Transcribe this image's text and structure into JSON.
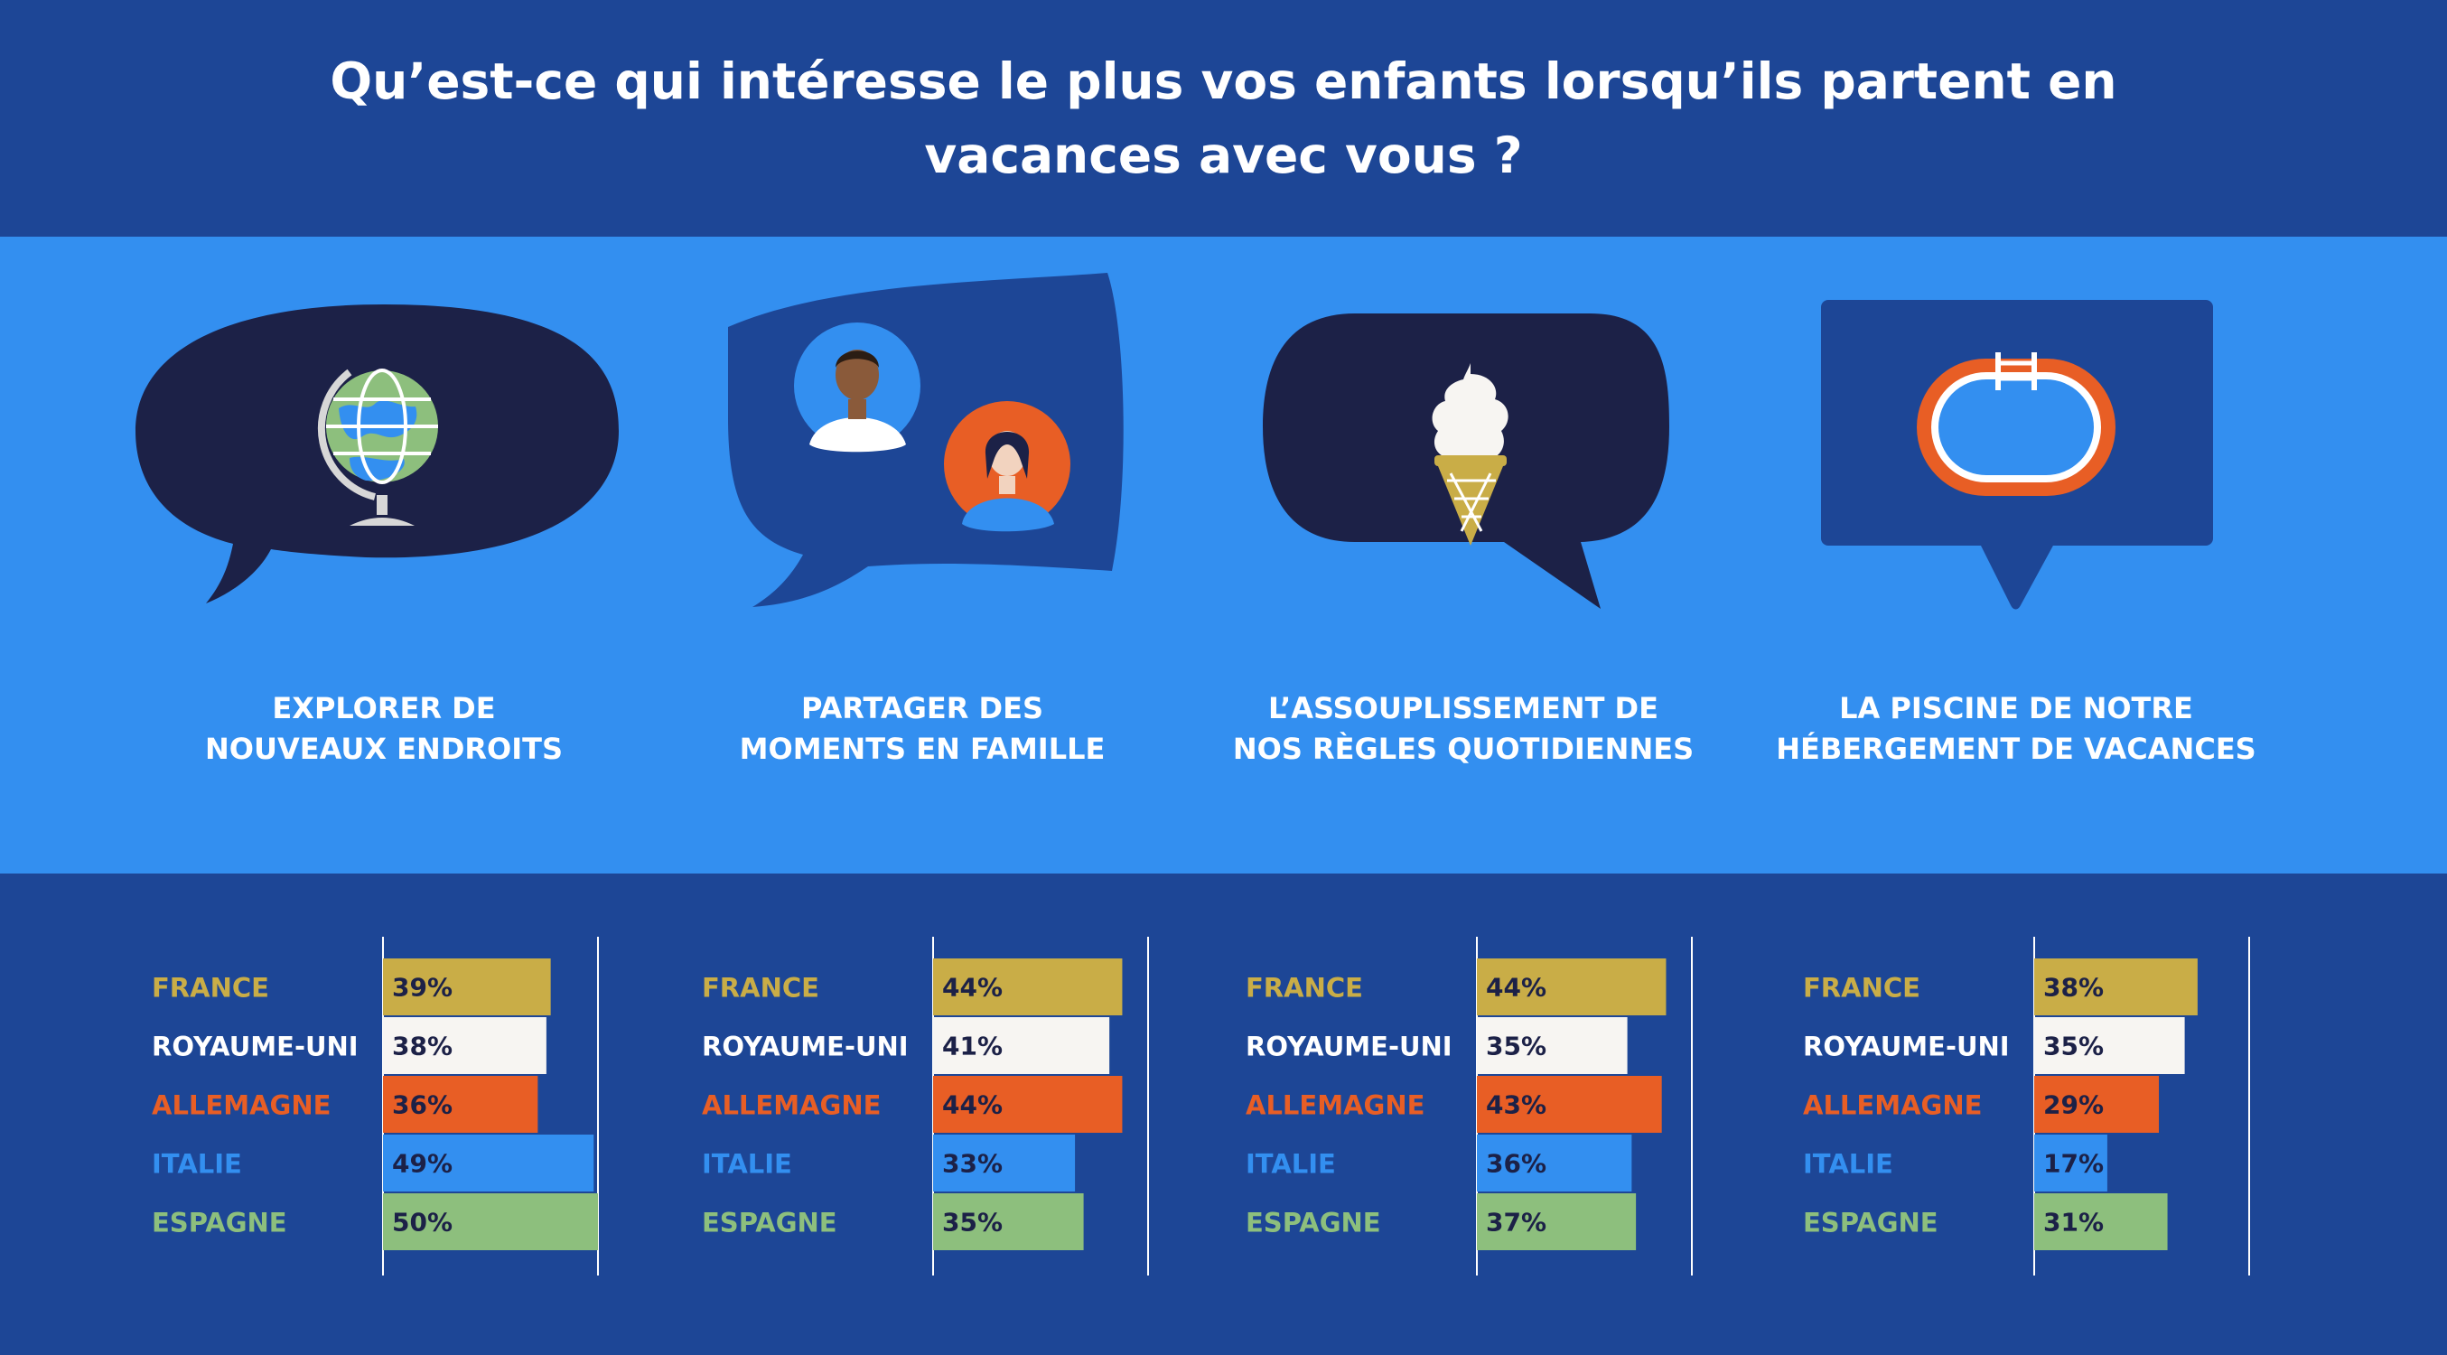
{
  "title": "Qu’est-ce qui intéresse le plus vos enfants lorsqu’ils partent en vacances avec vous ?",
  "icons": [
    "globe-icon",
    "family-icon",
    "ice-cream-icon",
    "pool-icon"
  ],
  "colors": {
    "header_bg": "#1d4696",
    "band_bg": "#338ff0",
    "bubble_dark": "#1c2147",
    "bubble_blue": "#1d4696",
    "france": "#c9ad47",
    "royaume_uni": "#f7f5f2",
    "allemagne": "#e85e25",
    "italie": "#338ff0",
    "espagne": "#8dbf7d"
  },
  "chart_data": [
    {
      "type": "bar",
      "title": "EXPLORER DE NOUVEAUX ENDROITS",
      "title_lines": [
        "EXPLORER DE",
        "NOUVEAUX ENDROITS"
      ],
      "categories": [
        "FRANCE",
        "ROYAUME-UNI",
        "ALLEMAGNE",
        "ITALIE",
        "ESPAGNE"
      ],
      "values": [
        39,
        38,
        36,
        49,
        50
      ],
      "value_labels": [
        "39%",
        "38%",
        "36%",
        "49%",
        "50%"
      ],
      "xlim": [
        0,
        50
      ],
      "orientation": "horizontal"
    },
    {
      "type": "bar",
      "title": "PARTAGER DES MOMENTS EN FAMILLE",
      "title_lines": [
        "PARTAGER DES",
        "MOMENTS EN FAMILLE"
      ],
      "categories": [
        "FRANCE",
        "ROYAUME-UNI",
        "ALLEMAGNE",
        "ITALIE",
        "ESPAGNE"
      ],
      "values": [
        44,
        41,
        44,
        33,
        35
      ],
      "value_labels": [
        "44%",
        "41%",
        "44%",
        "33%",
        "35%"
      ],
      "xlim": [
        0,
        50
      ],
      "orientation": "horizontal"
    },
    {
      "type": "bar",
      "title": "L’ASSOUPLISSEMENT DE NOS RÈGLES QUOTIDIENNES",
      "title_lines": [
        "L’ASSOUPLISSEMENT DE",
        "NOS RÈGLES QUOTIDIENNES"
      ],
      "categories": [
        "FRANCE",
        "ROYAUME-UNI",
        "ALLEMAGNE",
        "ITALIE",
        "ESPAGNE"
      ],
      "values": [
        44,
        35,
        43,
        36,
        37
      ],
      "value_labels": [
        "44%",
        "35%",
        "43%",
        "36%",
        "37%"
      ],
      "xlim": [
        0,
        50
      ],
      "orientation": "horizontal"
    },
    {
      "type": "bar",
      "title": "LA PISCINE DE NOTRE HÉBERGEMENT DE VACANCES",
      "title_lines": [
        "LA PISCINE DE NOTRE",
        "HÉBERGEMENT DE VACANCES"
      ],
      "categories": [
        "FRANCE",
        "ROYAUME-UNI",
        "ALLEMAGNE",
        "ITALIE",
        "ESPAGNE"
      ],
      "values": [
        38,
        35,
        29,
        17,
        31
      ],
      "value_labels": [
        "38%",
        "35%",
        "29%",
        "17%",
        "31%"
      ],
      "xlim": [
        0,
        50
      ],
      "orientation": "horizontal"
    }
  ]
}
